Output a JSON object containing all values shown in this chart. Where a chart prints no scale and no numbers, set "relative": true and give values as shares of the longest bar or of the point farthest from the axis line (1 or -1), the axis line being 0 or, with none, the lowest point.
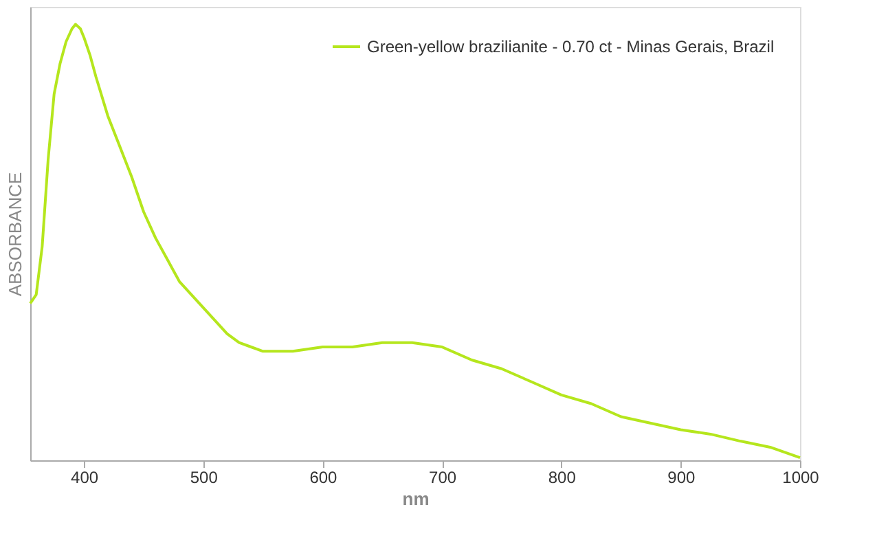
{
  "chart_data": {
    "type": "line",
    "xlabel": "nm",
    "ylabel": "ABSORBANCE",
    "relative": true,
    "xlim": [
      355,
      1000
    ],
    "xticks": [
      400,
      500,
      600,
      700,
      800,
      900,
      1000
    ],
    "grid": false,
    "legend": "top right",
    "marker": "none",
    "line_style": "solid",
    "series": [
      {
        "name": "Green-yellow brazilianite - 0.70 ct - Minas Gerais, Brazil",
        "color": "#b5e61d",
        "x": [
          355,
          360,
          365,
          370,
          375,
          380,
          385,
          390,
          393,
          397,
          400,
          405,
          410,
          420,
          430,
          440,
          450,
          460,
          470,
          480,
          490,
          500,
          510,
          520,
          530,
          540,
          550,
          575,
          600,
          625,
          650,
          675,
          700,
          725,
          750,
          775,
          800,
          825,
          850,
          875,
          900,
          925,
          950,
          975,
          1000
        ],
        "values": [
          0.36,
          0.38,
          0.49,
          0.69,
          0.84,
          0.91,
          0.96,
          0.99,
          1.0,
          0.99,
          0.97,
          0.93,
          0.88,
          0.79,
          0.72,
          0.65,
          0.57,
          0.51,
          0.46,
          0.41,
          0.38,
          0.35,
          0.32,
          0.29,
          0.27,
          0.26,
          0.25,
          0.25,
          0.26,
          0.26,
          0.27,
          0.27,
          0.26,
          0.23,
          0.21,
          0.18,
          0.15,
          0.13,
          0.1,
          0.085,
          0.07,
          0.06,
          0.044,
          0.03,
          0.006
        ]
      }
    ]
  }
}
